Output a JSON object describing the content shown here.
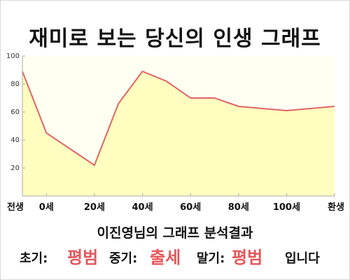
{
  "title": "재미로 보는 당신의 인생 그래프",
  "chart_data": {
    "type": "area",
    "x_labels": [
      "전생",
      "0세",
      "20세",
      "40세",
      "60세",
      "80세",
      "100세",
      "환생"
    ],
    "points": [
      {
        "x": -10,
        "y": 89
      },
      {
        "x": 0,
        "y": 45
      },
      {
        "x": 20,
        "y": 22
      },
      {
        "x": 30,
        "y": 66
      },
      {
        "x": 40,
        "y": 89
      },
      {
        "x": 50,
        "y": 82
      },
      {
        "x": 60,
        "y": 70
      },
      {
        "x": 70,
        "y": 70
      },
      {
        "x": 80,
        "y": 64
      },
      {
        "x": 100,
        "y": 61
      },
      {
        "x": 120,
        "y": 64
      }
    ],
    "y_ticks": [
      20,
      40,
      60,
      80,
      100
    ],
    "ylim": [
      0,
      100
    ],
    "grid": false,
    "colors": {
      "line": "#e06666",
      "fill": "#fffdc0",
      "plot_background": "#fffff2",
      "axis": "#aaaaaa"
    }
  },
  "result": {
    "heading": "이진영님의 그래프 분석결과",
    "early_label": "초기:",
    "early_value": "평범",
    "middle_label": "중기:",
    "middle_value": "출세",
    "late_label": "말기:",
    "late_value": "평범",
    "suffix": "입니다"
  }
}
